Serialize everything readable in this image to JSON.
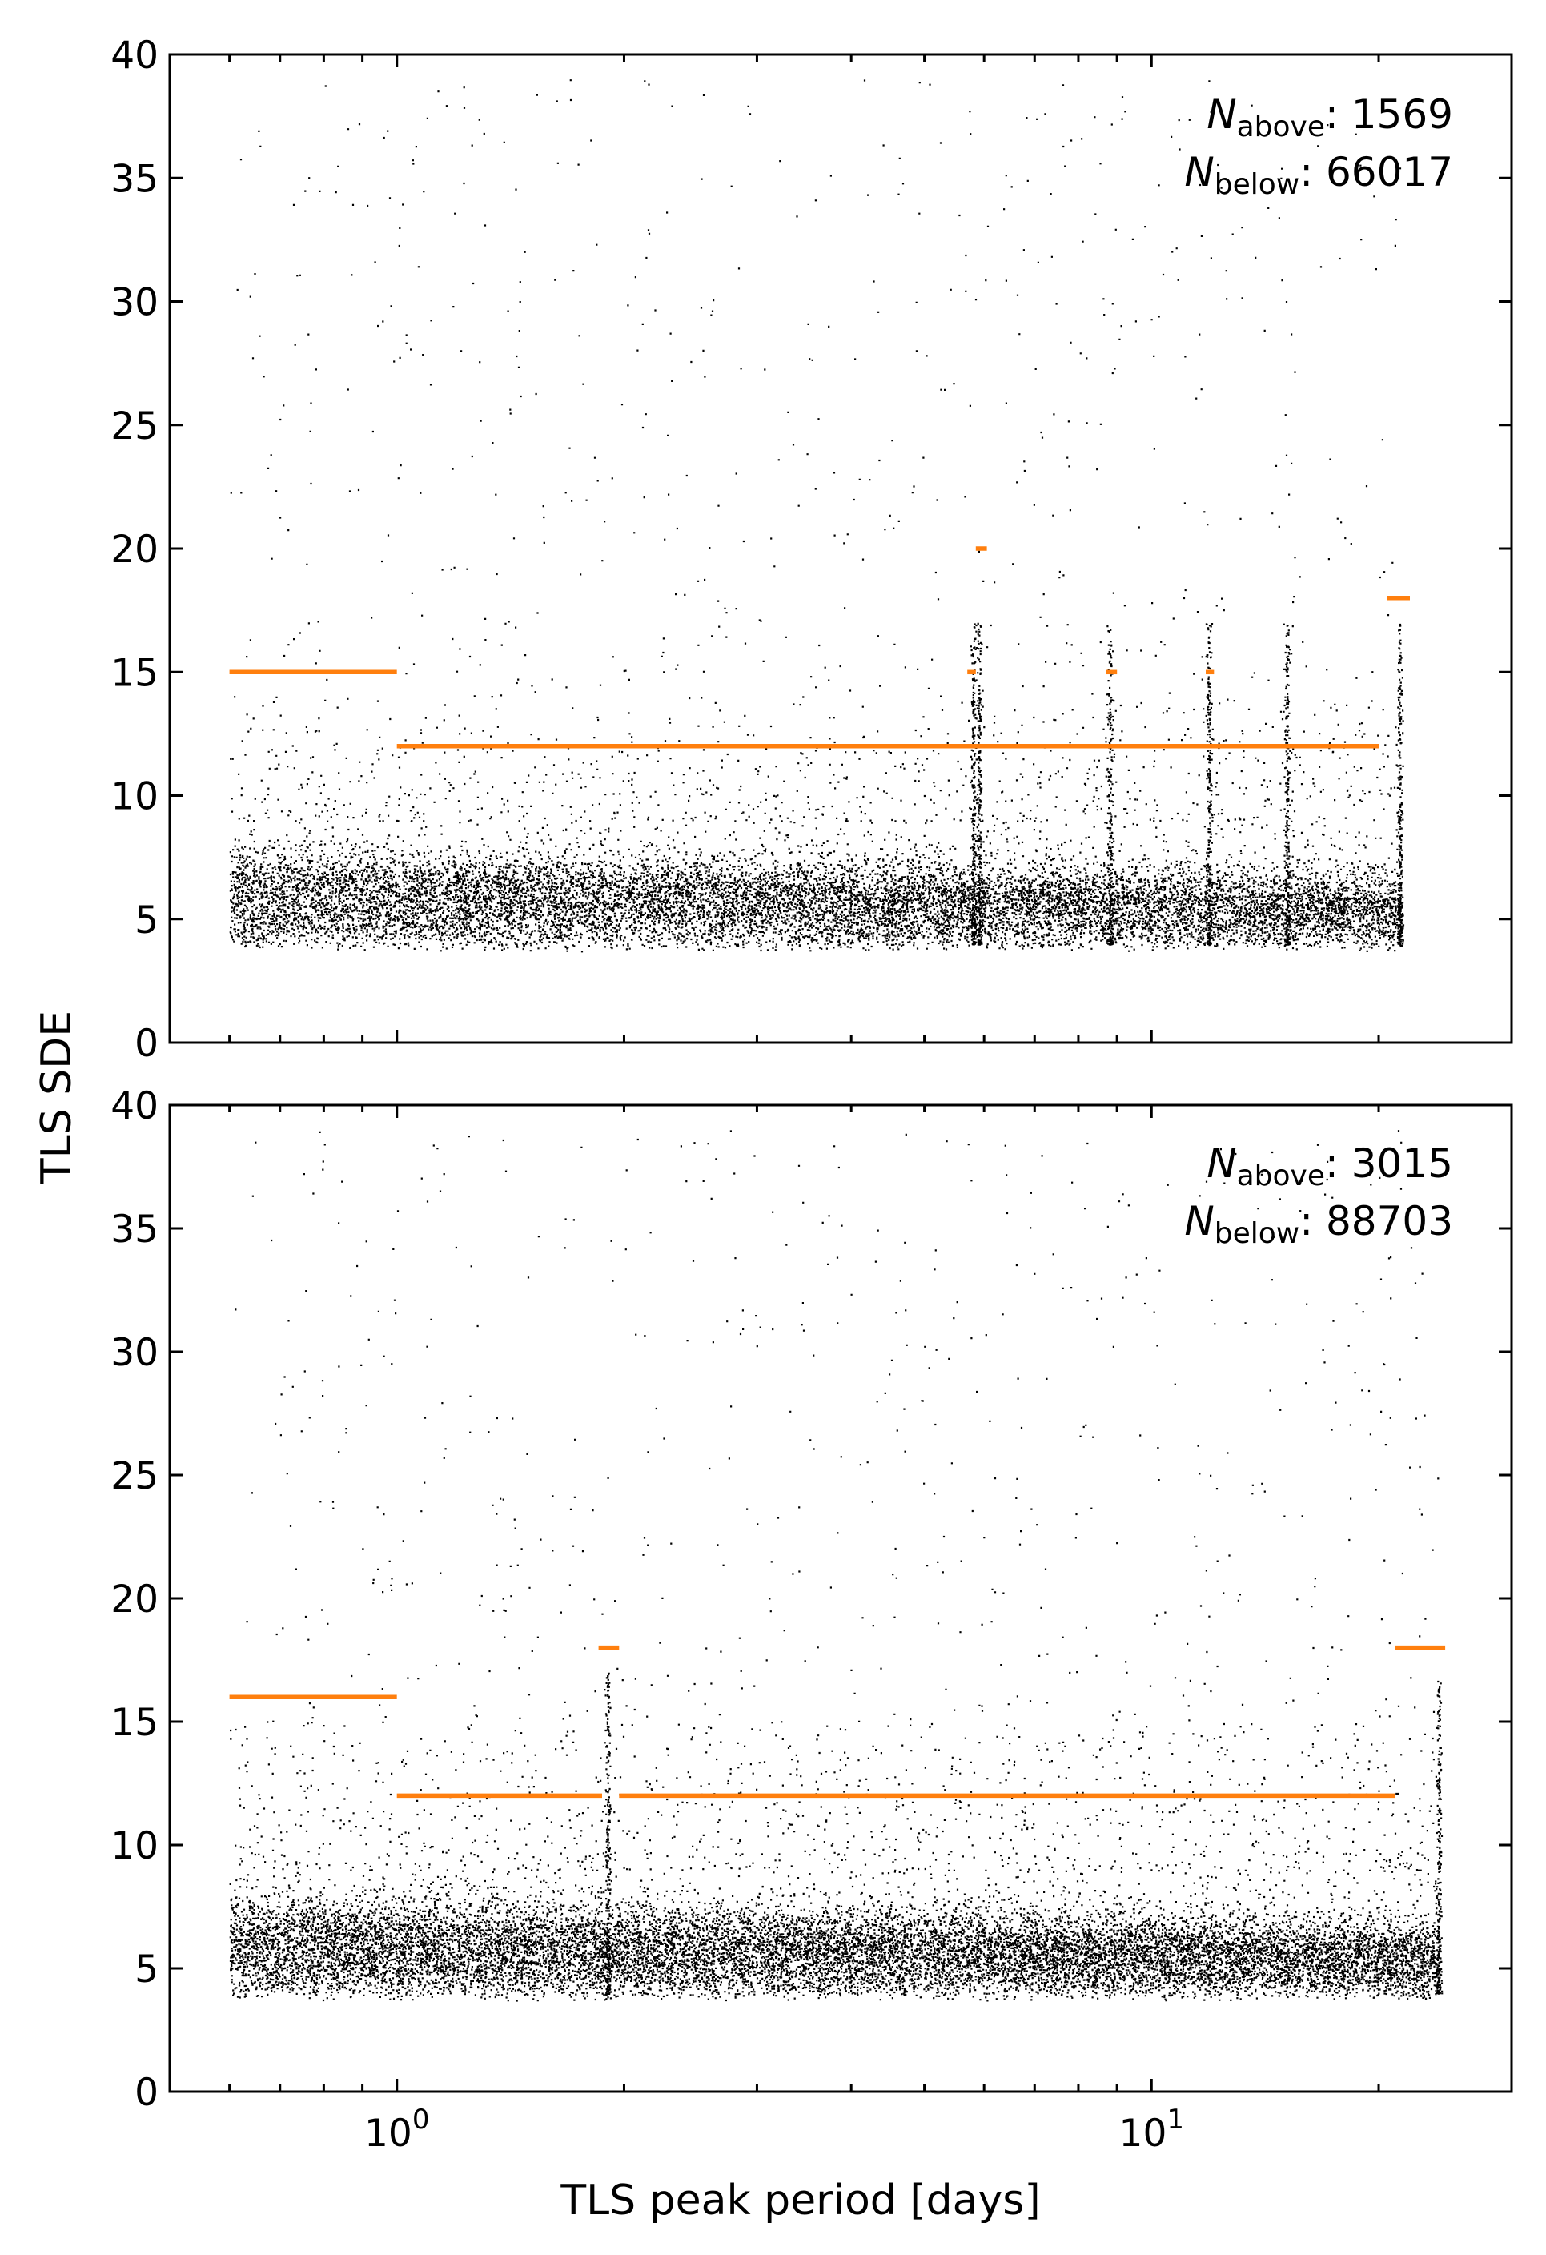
{
  "figure": {
    "ylabel": "TLS SDE",
    "xlabel": "TLS peak period [days]",
    "x_tick_labels": [
      {
        "base": "10",
        "exp": "0"
      },
      {
        "base": "10",
        "exp": "1"
      }
    ],
    "y_tick_labels": [
      "0",
      "5",
      "10",
      "15",
      "20",
      "25",
      "30",
      "35",
      "40"
    ]
  },
  "colors": {
    "threshold": "#ff7f0e",
    "points": "#000000",
    "axes": "#000000"
  },
  "chart_data": [
    {
      "type": "scatter",
      "panel": "top",
      "xscale": "log",
      "xlim": [
        0.5,
        30
      ],
      "ylim": [
        0,
        40
      ],
      "xlabel": "",
      "ylabel": "TLS SDE",
      "annotation": {
        "above_symbol": "N",
        "above_sub": "above",
        "above_value": ": 1569",
        "below_symbol": "N",
        "below_sub": "below",
        "below_value": ": 66017"
      },
      "period_range": [
        0.6,
        21.5
      ],
      "scatter_summary": {
        "n_above": 1569,
        "n_below": 66017,
        "bulk_sde_range": [
          4,
          10
        ],
        "spike_periods": [
          5.8,
          5.9,
          8.8,
          11.9,
          15.1,
          21.3
        ]
      },
      "thresholds": [
        {
          "x": [
            0.6,
            1.0
          ],
          "y": 15
        },
        {
          "x": [
            1.0,
            20.0
          ],
          "y": 12
        },
        {
          "x": [
            5.7,
            5.85
          ],
          "y": 15
        },
        {
          "x": [
            5.85,
            6.05
          ],
          "y": 20
        },
        {
          "x": [
            8.7,
            9.0
          ],
          "y": 15
        },
        {
          "x": [
            11.8,
            12.1
          ],
          "y": 15
        },
        {
          "x": [
            20.5,
            22.0
          ],
          "y": 18
        }
      ]
    },
    {
      "type": "scatter",
      "panel": "bottom",
      "xscale": "log",
      "xlim": [
        0.5,
        30
      ],
      "ylim": [
        0,
        40
      ],
      "xlabel": "TLS peak period [days]",
      "ylabel": "TLS SDE",
      "annotation": {
        "above_symbol": "N",
        "above_sub": "above",
        "above_value": ": 3015",
        "below_symbol": "N",
        "below_sub": "below",
        "below_value": ": 88703"
      },
      "period_range": [
        0.6,
        24.0
      ],
      "scatter_summary": {
        "n_above": 3015,
        "n_below": 88703,
        "bulk_sde_range": [
          4,
          12
        ],
        "spike_periods": [
          1.9,
          24.0
        ]
      },
      "thresholds": [
        {
          "x": [
            0.6,
            1.0
          ],
          "y": 16
        },
        {
          "x": [
            1.0,
            1.87
          ],
          "y": 12
        },
        {
          "x": [
            1.97,
            21.0
          ],
          "y": 12
        },
        {
          "x": [
            1.85,
            1.97
          ],
          "y": 18
        },
        {
          "x": [
            21.0,
            24.5
          ],
          "y": 18
        }
      ]
    }
  ]
}
